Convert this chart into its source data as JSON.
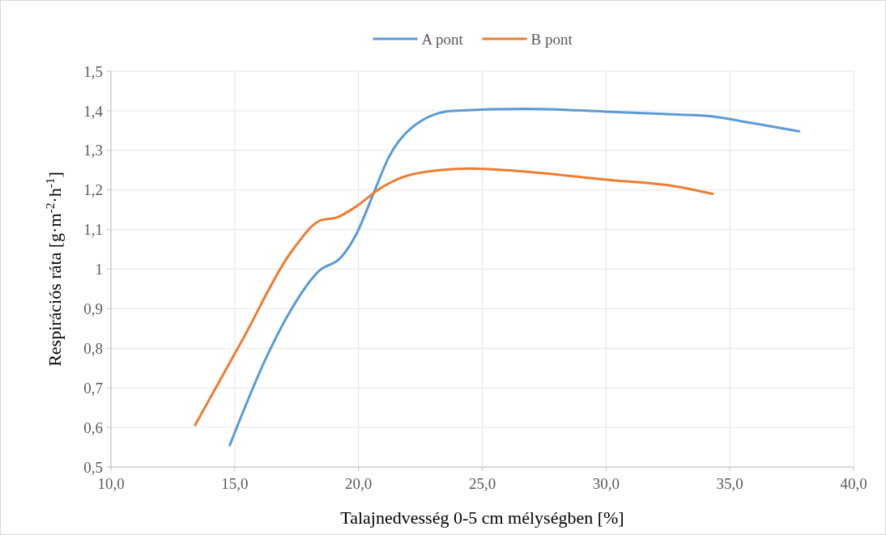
{
  "chart_data": {
    "type": "line",
    "xlabel": "Talajnedvesség 0-5 cm mélységben [%]",
    "ylabel": "Respirációs ráta [g·m$^{-2}$·h$^{-1}$]",
    "xlim": [
      10,
      40
    ],
    "xticks": [
      {
        "value": 10,
        "label": "10,0"
      },
      {
        "value": 15,
        "label": "15,0"
      },
      {
        "value": 20,
        "label": "20,0"
      },
      {
        "value": 25,
        "label": "25,0"
      },
      {
        "value": 30,
        "label": "30,0"
      },
      {
        "value": 35,
        "label": "35,0"
      },
      {
        "value": 40,
        "label": "40,0"
      }
    ],
    "ylim": [
      0.5,
      1.5
    ],
    "yticks": [
      {
        "value": 0.5,
        "label": "0,5"
      },
      {
        "value": 0.6,
        "label": "0,6"
      },
      {
        "value": 0.7,
        "label": "0,7"
      },
      {
        "value": 0.8,
        "label": "0,8"
      },
      {
        "value": 0.9,
        "label": "0,9"
      },
      1,
      {
        "value": 1.1,
        "label": "1,1"
      },
      {
        "value": 1.2,
        "label": "1,2"
      },
      {
        "value": 1.3,
        "label": "1,3"
      },
      {
        "value": 1.4,
        "label": "1,4"
      },
      {
        "value": 1.5,
        "label": "1,5"
      }
    ],
    "grid": true,
    "legend": "top",
    "marker": "none",
    "line_style": "solid",
    "series": [
      {
        "name": "A pont",
        "color": "#5b9bd5",
        "x": [
          14.8,
          16.3,
          17.3,
          18.4,
          19.3,
          19.9,
          20.6,
          21.2,
          22.2,
          23.8,
          26.8,
          30.0,
          32.3,
          34.1,
          35.9,
          37.8
        ],
        "values": [
          0.555,
          0.78,
          0.9,
          0.995,
          1.03,
          1.087,
          1.19,
          1.28,
          1.36,
          1.4,
          1.405,
          1.398,
          1.392,
          1.387,
          1.369,
          1.348
        ]
      },
      {
        "name": "B pont",
        "color": "#ed7d31",
        "x": [
          13.4,
          15.3,
          17.3,
          18.5,
          19.1,
          19.9,
          20.9,
          22.2,
          24.5,
          26.8,
          30.0,
          32.7,
          34.3
        ],
        "values": [
          0.606,
          0.82,
          1.045,
          1.124,
          1.13,
          1.158,
          1.205,
          1.24,
          1.254,
          1.246,
          1.226,
          1.21,
          1.19
        ]
      }
    ]
  }
}
